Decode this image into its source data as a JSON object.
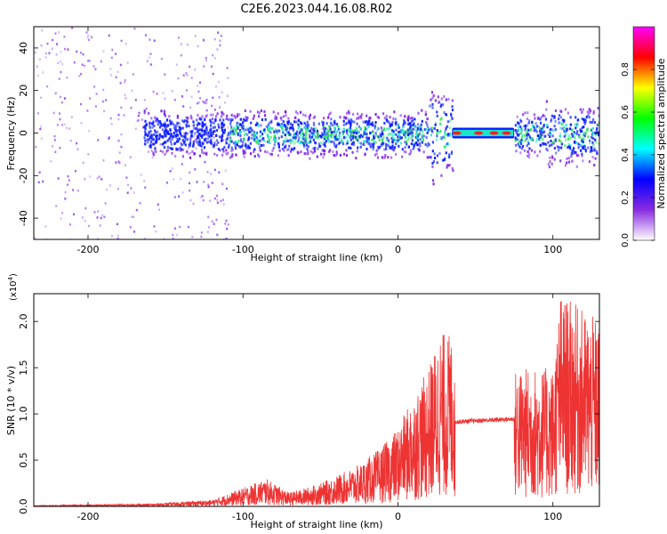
{
  "title": "C2E6.2023.044.16.08.R02",
  "chart_data": [
    {
      "type": "heatmap",
      "xlabel": "Height of straight line (km)",
      "ylabel": "Frequency (Hz)",
      "xlim": [
        -235,
        130
      ],
      "ylim": [
        -50,
        50
      ],
      "x_ticks": [
        -200,
        -100,
        0,
        100
      ],
      "y_ticks": [
        -40,
        -20,
        0,
        20,
        40
      ],
      "colorbar": {
        "label": "Normalized spectral amplitude",
        "range": [
          0,
          1
        ],
        "ticks": [
          "0.0",
          "0.2",
          "0.4",
          "0.6",
          "0.8"
        ],
        "colormap": [
          "#ffffff",
          "#8a2be2",
          "#0000ff",
          "#00ffff",
          "#00ff00",
          "#ffff00",
          "#ff0000",
          "#ff00ff"
        ]
      },
      "colors": {
        "noise": "#7b1fe8",
        "signal_low": "#0a1cff",
        "signal_mid": "#19e6c8",
        "signal_high": "#2fe64a",
        "peak": "#ff2020"
      },
      "features": [
        {
          "name": "diffuse noise",
          "x_range": [
            -235,
            -110
          ],
          "freq_range": [
            -50,
            50
          ],
          "amplitude": 0.05
        },
        {
          "name": "signal band",
          "x_range": [
            -165,
            130
          ],
          "center_freq": 0,
          "amplitude": 0.45
        },
        {
          "name": "saturated segment",
          "x_range": [
            35,
            75
          ],
          "center_freq": 0,
          "amplitude": 0.95
        }
      ]
    },
    {
      "type": "line",
      "xlabel": "Height of straight line (km)",
      "ylabel": "SNR (10 * v/v)",
      "y_multiplier": "(x10",
      "y_multiplier_exp": "4",
      "y_multiplier_close": ")",
      "xlim": [
        -235,
        130
      ],
      "ylim": [
        0,
        2.3
      ],
      "x_ticks": [
        -200,
        -100,
        0,
        100
      ],
      "y_ticks": [
        "0.0",
        "0.5",
        "1.0",
        "1.5",
        "2.0"
      ],
      "color": "#ee3333",
      "envelope": [
        {
          "x": -235,
          "y": 0.01
        },
        {
          "x": -160,
          "y": 0.03
        },
        {
          "x": -120,
          "y": 0.07
        },
        {
          "x": -100,
          "y": 0.2
        },
        {
          "x": -85,
          "y": 0.3
        },
        {
          "x": -70,
          "y": 0.15
        },
        {
          "x": -50,
          "y": 0.25
        },
        {
          "x": -25,
          "y": 0.45
        },
        {
          "x": -10,
          "y": 0.65
        },
        {
          "x": 0,
          "y": 0.85
        },
        {
          "x": 10,
          "y": 1.2
        },
        {
          "x": 20,
          "y": 1.5
        },
        {
          "x": 27,
          "y": 1.9
        },
        {
          "x": 36,
          "y": 1.85
        },
        {
          "x": 37,
          "y": 0.92
        },
        {
          "x": 75,
          "y": 0.95
        },
        {
          "x": 76,
          "y": 1.5
        },
        {
          "x": 100,
          "y": 1.5
        },
        {
          "x": 105,
          "y": 2.3
        },
        {
          "x": 130,
          "y": 2.0
        }
      ]
    }
  ]
}
